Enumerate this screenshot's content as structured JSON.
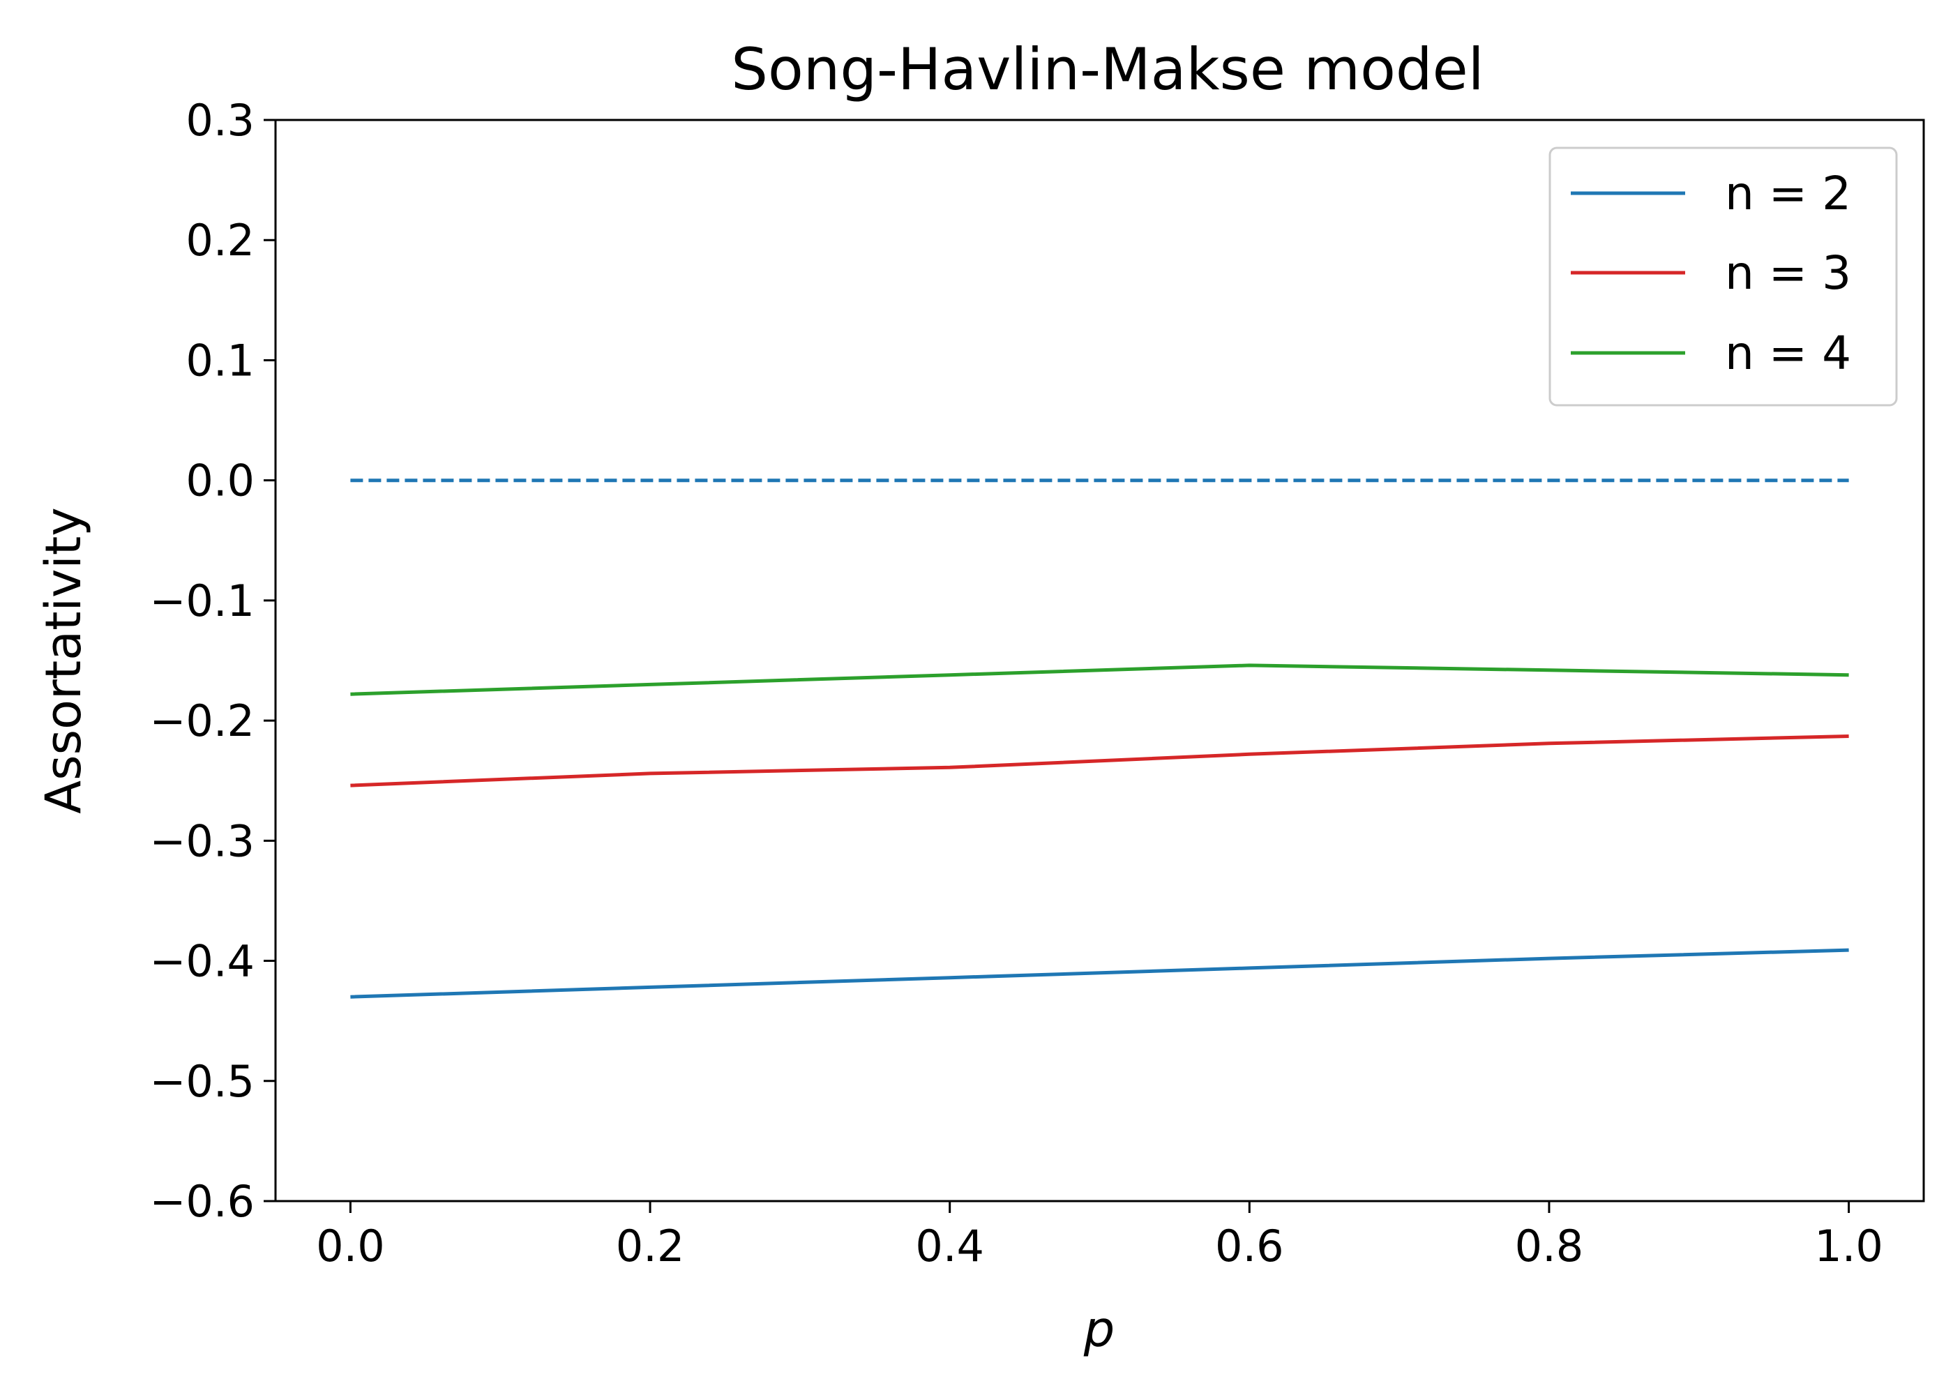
{
  "chart_data": {
    "type": "line",
    "title": "Song-Havlin-Makse model",
    "xlabel": "p",
    "ylabel": "Assortativity",
    "x": [
      0.0,
      0.2,
      0.4,
      0.6,
      0.8,
      1.0
    ],
    "xlim": [
      -0.05,
      1.05
    ],
    "ylim": [
      -0.6,
      0.3
    ],
    "xticks": [
      "0.0",
      "0.2",
      "0.4",
      "0.6",
      "0.8",
      "1.0"
    ],
    "yticks": [
      "0.3",
      "0.2",
      "0.1",
      "0.0",
      "−0.1",
      "−0.2",
      "−0.3",
      "−0.4",
      "−0.5",
      "−0.6"
    ],
    "ytick_values": [
      0.3,
      0.2,
      0.1,
      0.0,
      -0.1,
      -0.2,
      -0.3,
      -0.4,
      -0.5,
      -0.6
    ],
    "grid": false,
    "legend_position": "top-right",
    "series": [
      {
        "name": "n = 2",
        "color": "#1f77b4",
        "style": "solid",
        "values": [
          -0.43,
          -0.422,
          -0.414,
          -0.406,
          -0.398,
          -0.391
        ]
      },
      {
        "name": "n = 3",
        "color": "#d62728",
        "style": "solid",
        "values": [
          -0.254,
          -0.244,
          -0.239,
          -0.228,
          -0.219,
          -0.213
        ]
      },
      {
        "name": "n = 4",
        "color": "#2ca02c",
        "style": "solid",
        "values": [
          -0.178,
          -0.17,
          -0.162,
          -0.154,
          -0.158,
          -0.162
        ]
      },
      {
        "color": "#1f77b4",
        "style": "dashed",
        "values": [
          0.0,
          0.0,
          0.0,
          0.0,
          0.0,
          0.0
        ]
      }
    ]
  }
}
